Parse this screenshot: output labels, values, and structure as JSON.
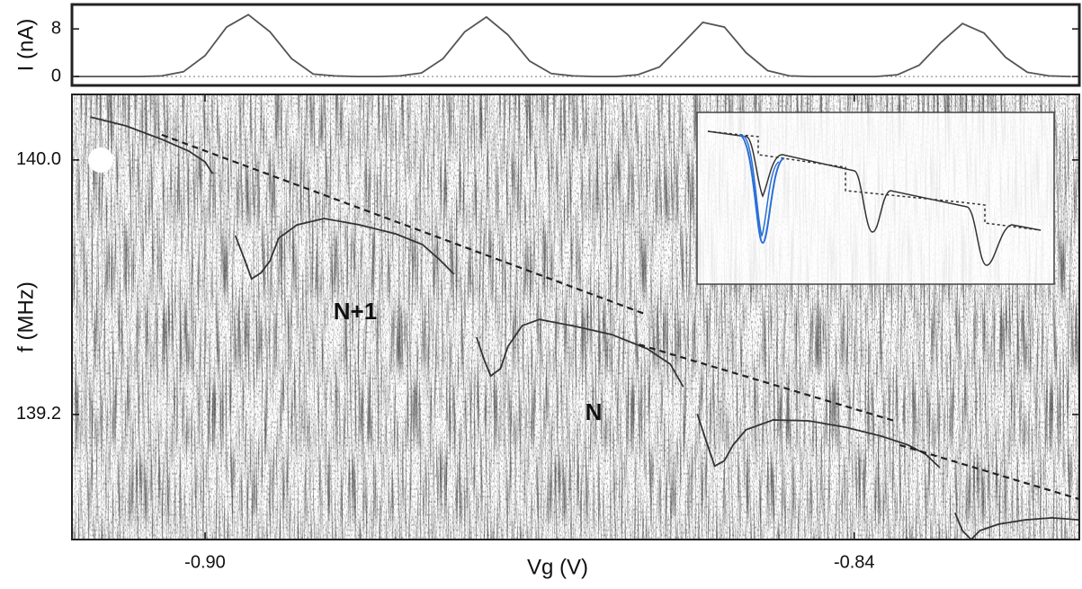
{
  "chart_data": [
    {
      "type": "line",
      "y_label": "I (nA)",
      "x": [
        -0.912,
        -0.91,
        -0.908,
        -0.906,
        -0.904,
        -0.902,
        -0.9,
        -0.898,
        -0.896,
        -0.894,
        -0.892,
        -0.89,
        -0.888,
        -0.886,
        -0.884,
        -0.882,
        -0.88,
        -0.878,
        -0.876,
        -0.874,
        -0.872,
        -0.87,
        -0.868,
        -0.866,
        -0.864,
        -0.862,
        -0.86,
        -0.858,
        -0.856,
        -0.854,
        -0.852,
        -0.85,
        -0.848,
        -0.846,
        -0.844,
        -0.842,
        -0.84,
        -0.838,
        -0.836,
        -0.834,
        -0.832,
        -0.83,
        -0.828,
        -0.826,
        -0.824,
        -0.822,
        -0.82
      ],
      "series": [
        {
          "color": "#555555",
          "values": [
            0,
            0,
            0,
            0,
            0.1,
            0.8,
            3.5,
            8.3,
            10.4,
            7.5,
            3.0,
            0.4,
            0.1,
            0,
            0,
            0.1,
            0.6,
            3.0,
            7.5,
            10.0,
            7.0,
            2.6,
            0.5,
            0.1,
            0,
            0,
            0.3,
            1.6,
            5.3,
            9.1,
            8.3,
            4.0,
            1.0,
            0.1,
            0,
            0,
            0,
            0,
            0.3,
            1.9,
            5.7,
            8.9,
            7.3,
            3.2,
            0.7,
            0.1,
            0
          ]
        }
      ],
      "xlim": [
        -0.9123,
        -0.8192
      ],
      "ylim": [
        -1.5,
        12.1
      ],
      "yticks": [
        0,
        8
      ],
      "reference_line": 0
    },
    {
      "type": "line",
      "x_label": "Vg (V)",
      "y_label": "f (MHz)",
      "series": [
        {
          "color": "#333333",
          "x": [
            -0.9106,
            -0.9073,
            -0.904,
            -0.9015,
            -0.9,
            -0.8993,
            -0.8985,
            -0.8972,
            -0.8963,
            -0.8957,
            -0.8948,
            -0.894,
            -0.8932,
            -0.8915,
            -0.889,
            -0.8857,
            -0.8824,
            -0.8799,
            -0.8782,
            -0.877,
            -0.876,
            -0.8749,
            -0.8742,
            -0.8736,
            -0.8727,
            -0.872,
            -0.8707,
            -0.8691,
            -0.8658,
            -0.8624,
            -0.8591,
            -0.857,
            -0.8558,
            -0.855,
            -0.8545,
            -0.8537,
            -0.8529,
            -0.852,
            -0.8512,
            -0.85,
            -0.8475,
            -0.8442,
            -0.8408,
            -0.8375,
            -0.835,
            -0.8334,
            -0.8321,
            -0.831,
            -0.8307,
            -0.83,
            -0.8292,
            -0.8284,
            -0.8267,
            -0.8242,
            -0.8217,
            -0.8192
          ],
          "values": [
            140.135,
            140.107,
            140.065,
            140.028,
            139.994,
            139.957,
            null,
            139.762,
            139.683,
            139.626,
            139.646,
            139.683,
            139.754,
            139.796,
            139.816,
            139.796,
            139.768,
            139.734,
            139.683,
            139.641,
            null,
            139.443,
            139.372,
            139.321,
            139.344,
            139.414,
            139.479,
            139.499,
            139.477,
            139.451,
            139.406,
            139.358,
            139.287,
            null,
            139.202,
            139.118,
            139.038,
            139.055,
            139.104,
            139.152,
            139.183,
            139.18,
            139.16,
            139.132,
            139.104,
            139.075,
            139.033,
            null,
            138.891,
            138.835,
            138.807,
            138.835,
            138.855,
            138.869,
            138.875,
            138.869
          ]
        },
        {
          "color": "#222222",
          "dashed": true,
          "x": [
            -0.904,
            -0.8591,
            -0.859,
            -0.8599,
            -0.8363,
            -0.836,
            -0.8358,
            -0.8192
          ],
          "values": [
            140.079,
            139.513,
            null,
            139.42,
            139.18,
            null,
            139.104,
            138.934
          ]
        }
      ],
      "xlim": [
        -0.9123,
        -0.8192
      ],
      "ylim": [
        138.807,
        140.206
      ],
      "xticks": [
        {
          "value": -0.9,
          "label": "-0.90"
        },
        {
          "value": -0.84,
          "label": "-0.84"
        }
      ],
      "yticks": [
        139.2,
        {
          "value": 140,
          "label": "140.0"
        }
      ],
      "annotations": [
        "N+1",
        "N"
      ]
    }
  ]
}
